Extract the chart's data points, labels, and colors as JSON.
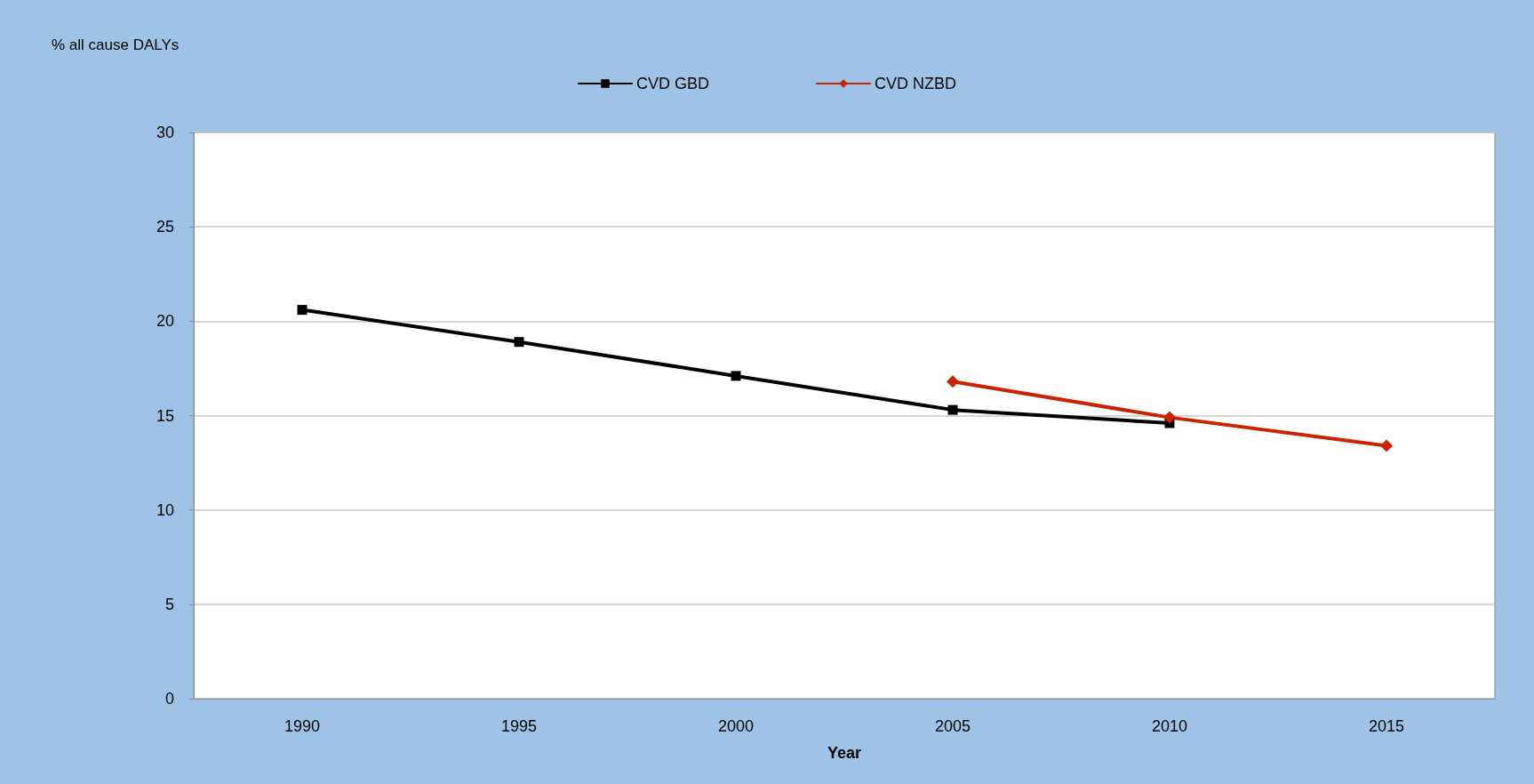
{
  "chart_data": {
    "type": "line",
    "ylabel": "% all cause DALYs",
    "xlabel": "Year",
    "categories": [
      "1990",
      "1995",
      "2000",
      "2005",
      "2010",
      "2015"
    ],
    "series": [
      {
        "name": "CVD GBD",
        "color": "#000000",
        "marker": "square",
        "values": [
          20.6,
          18.9,
          17.1,
          15.3,
          14.6,
          null
        ]
      },
      {
        "name": "CVD NZBD",
        "color": "#cc2200",
        "marker": "diamond",
        "values": [
          null,
          null,
          null,
          16.8,
          14.9,
          13.4
        ]
      }
    ],
    "ylim": [
      0,
      30
    ],
    "yticks": [
      0,
      5,
      10,
      15,
      20,
      25,
      30
    ],
    "grid": "y",
    "legend": "top"
  }
}
